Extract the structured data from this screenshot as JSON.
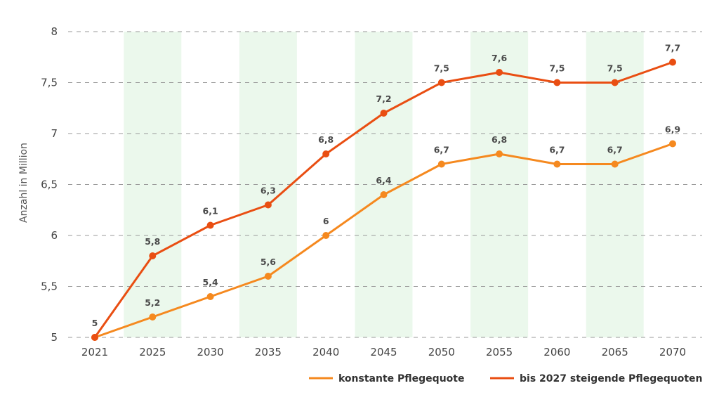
{
  "chart_data": {
    "type": "line",
    "title": "",
    "xlabel": "",
    "ylabel": "Anzahl in Million",
    "ylim": [
      5,
      8
    ],
    "yticks": [
      5,
      5.5,
      6,
      6.5,
      7,
      7.5,
      8
    ],
    "yticks_labels": [
      "5",
      "5,5",
      "6",
      "6,5",
      "7",
      "7,5",
      "8"
    ],
    "categories": [
      "2021",
      "2025",
      "2030",
      "2035",
      "2040",
      "2045",
      "2050",
      "2055",
      "2060",
      "2065",
      "2070"
    ],
    "shaded_bands": [
      "2025",
      "2035",
      "2045",
      "2055",
      "2065"
    ],
    "grid": "horizontal dashed",
    "legend_position": "bottom-right",
    "series": [
      {
        "name": "konstante Pflegequote",
        "color": "#f5891f",
        "values": [
          5.0,
          5.2,
          5.4,
          5.6,
          6.0,
          6.4,
          6.7,
          6.8,
          6.7,
          6.7,
          6.9
        ],
        "labels": [
          "",
          "5,2",
          "5,4",
          "5,6",
          "6",
          "6,4",
          "6,7",
          "6,8",
          "6,7",
          "6,7",
          "6,9"
        ]
      },
      {
        "name": "bis 2027 steigende Pflegequoten",
        "color": "#e94e12",
        "values": [
          5.0,
          5.8,
          6.1,
          6.3,
          6.8,
          7.2,
          7.5,
          7.6,
          7.5,
          7.5,
          7.7
        ],
        "labels": [
          "5",
          "5,8",
          "6,1",
          "6,3",
          "6,8",
          "7,2",
          "7,5",
          "7,6",
          "7,5",
          "7,5",
          "7,7"
        ]
      }
    ]
  }
}
